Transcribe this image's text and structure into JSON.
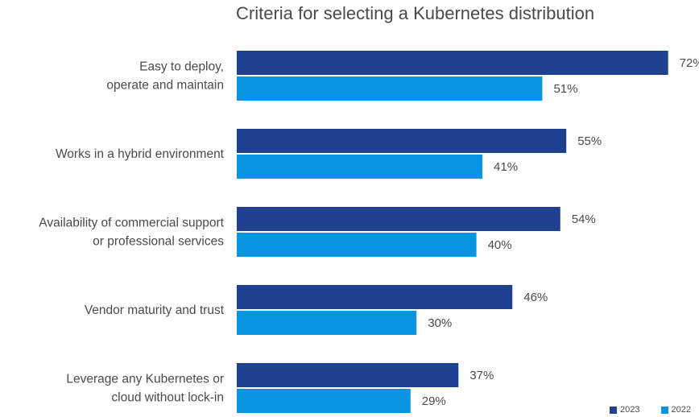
{
  "chart_data": {
    "type": "bar",
    "orientation": "horizontal",
    "title": "Criteria for selecting a Kubernetes distribution",
    "categories": [
      [
        "Easy to deploy,",
        "operate and maintain"
      ],
      [
        "Works in a hybrid environment"
      ],
      [
        "Availability of commercial support",
        "or professional services"
      ],
      [
        "Vendor maturity and trust"
      ],
      [
        "Leverage any Kubernetes or",
        "cloud without lock-in"
      ]
    ],
    "series": [
      {
        "name": "2023",
        "color": "#1f3f8f",
        "values": [
          72,
          55,
          54,
          46,
          37
        ]
      },
      {
        "name": "2022",
        "color": "#0894e0",
        "values": [
          51,
          41,
          40,
          30,
          29
        ]
      }
    ],
    "value_suffix": "%",
    "xlim": [
      0,
      100
    ],
    "grid": false,
    "legend_position": "bottom-right"
  }
}
